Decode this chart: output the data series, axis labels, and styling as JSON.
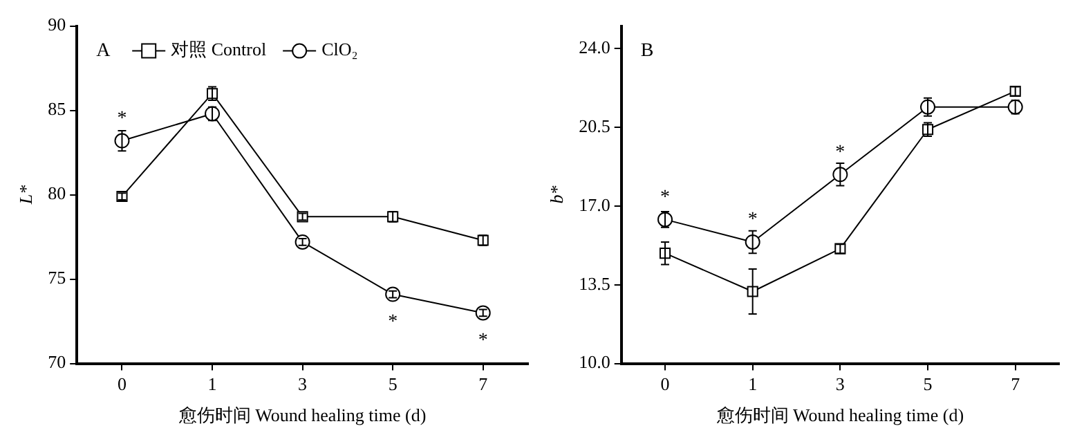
{
  "chart_data": [
    {
      "type": "line",
      "categories": [
        "0",
        "1",
        "3",
        "5",
        "7"
      ],
      "xlabel": "愈伤时间 Wound healing time (d)",
      "ylabel": "L*",
      "ylim": [
        70,
        90
      ],
      "yticks": [
        70,
        75,
        80,
        85,
        90
      ],
      "grid": false,
      "legend": "top left",
      "line_style": "solid",
      "series": [
        {
          "name": "对照 Control",
          "color": "#000000",
          "marker": "square",
          "values": [
            79.9,
            86.0,
            78.7,
            78.7,
            77.3
          ],
          "errors": [
            0.2,
            0.4,
            0.2,
            0.3,
            0.3
          ]
        },
        {
          "name": "ClO₂",
          "color": "#000000",
          "marker": "circle",
          "values": [
            83.2,
            84.8,
            77.2,
            74.1,
            73.0
          ],
          "errors": [
            0.6,
            0.4,
            0.2,
            0.2,
            0.2
          ]
        }
      ],
      "annotations": [
        "A",
        {
          "text": "*",
          "x": "0",
          "y": 83.2
        },
        {
          "text": "*",
          "x": "5",
          "y": 74.1
        },
        {
          "text": "*",
          "x": "7",
          "y": 73.0
        }
      ]
    },
    {
      "type": "line",
      "categories": [
        "0",
        "1",
        "3",
        "5",
        "7"
      ],
      "xlabel": "愈伤时间 Wound healing time (d)",
      "ylabel": "b*",
      "ylim": [
        10,
        25
      ],
      "yticks": [
        {
          "value": 10,
          "label": "10.0"
        },
        {
          "value": 13.5,
          "label": "13.5"
        },
        {
          "value": 17,
          "label": "17.0"
        },
        {
          "value": 20.5,
          "label": "20.5"
        },
        {
          "value": 24,
          "label": "24.0"
        }
      ],
      "grid": false,
      "line_style": "solid",
      "series": [
        {
          "color": "#000000",
          "marker": "square",
          "values": [
            14.9,
            13.2,
            15.1,
            20.4,
            22.1
          ],
          "errors": [
            0.5,
            1.0,
            0.2,
            0.3,
            0.2
          ]
        },
        {
          "color": "#000000",
          "marker": "circle",
          "values": [
            16.4,
            15.4,
            18.4,
            21.4,
            21.4
          ],
          "errors": [
            0.35,
            0.5,
            0.5,
            0.4,
            0.3
          ]
        }
      ],
      "annotations": [
        "B",
        {
          "text": "*",
          "x": "0",
          "y": 16.4
        },
        {
          "text": "*",
          "x": "1",
          "y": 15.4
        },
        {
          "text": "*",
          "x": "3",
          "y": 18.4
        }
      ]
    }
  ]
}
